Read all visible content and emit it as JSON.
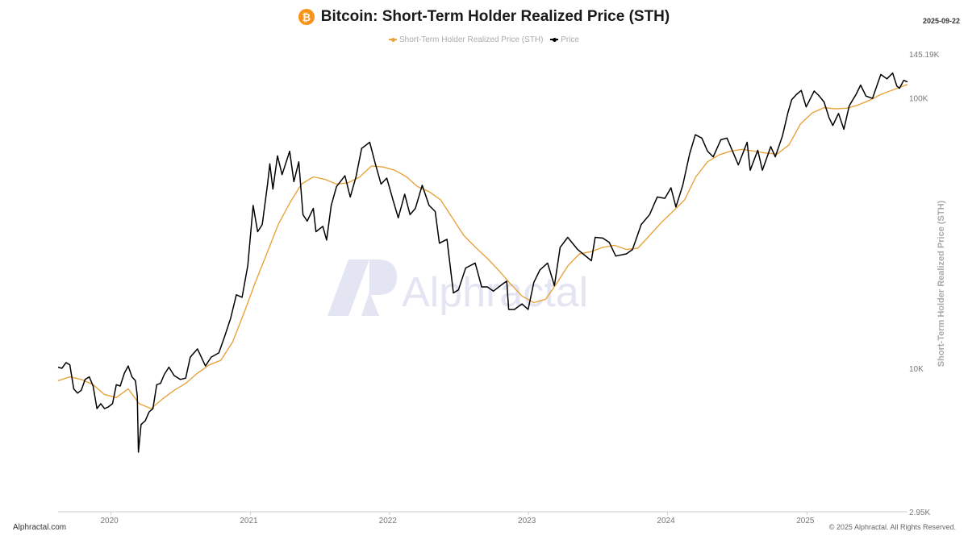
{
  "header": {
    "title": "Bitcoin: Short-Term Holder Realized Price (STH)",
    "date": "2025-09-22"
  },
  "footer": {
    "left": "Alphractal.com",
    "right": "© 2025 Alphractal. All Rights Reserved."
  },
  "watermark": "Alphractal",
  "colors": {
    "sth": "#e8a33d",
    "price": "#000000",
    "bitcoin": "#f7931a"
  },
  "chart_data": {
    "type": "line",
    "title": "Bitcoin: Short-Term Holder Realized Price (STH)",
    "ylabel": "Short-Term Holder Realized Price (STH)",
    "yscale": "log",
    "ylim": [
      2950,
      145190
    ],
    "y_ticks": [
      {
        "value": 2950,
        "label": "2.95K"
      },
      {
        "value": 10000,
        "label": "10K"
      },
      {
        "value": 100000,
        "label": "100K"
      },
      {
        "value": 145190,
        "label": "145.19K"
      }
    ],
    "xlim": [
      "2019-08-15",
      "2025-09-22"
    ],
    "x_ticks": [
      {
        "value": "2020-01-01",
        "label": "2020"
      },
      {
        "value": "2021-01-01",
        "label": "2021"
      },
      {
        "value": "2022-01-01",
        "label": "2022"
      },
      {
        "value": "2023-01-01",
        "label": "2023"
      },
      {
        "value": "2024-01-01",
        "label": "2024"
      },
      {
        "value": "2025-01-01",
        "label": "2025"
      }
    ],
    "legend": "top-center",
    "grid": false,
    "series": [
      {
        "name": "Short-Term Holder Realized Price (STH)",
        "color": "#e8a33d",
        "points": [
          [
            "2019-08-15",
            9000
          ],
          [
            "2019-09-15",
            9300
          ],
          [
            "2019-10-15",
            9100
          ],
          [
            "2019-11-15",
            8700
          ],
          [
            "2019-12-15",
            8000
          ],
          [
            "2020-01-15",
            7800
          ],
          [
            "2020-02-15",
            8400
          ],
          [
            "2020-03-15",
            7400
          ],
          [
            "2020-04-15",
            7100
          ],
          [
            "2020-05-15",
            7700
          ],
          [
            "2020-06-15",
            8300
          ],
          [
            "2020-07-15",
            8800
          ],
          [
            "2020-08-15",
            9600
          ],
          [
            "2020-09-15",
            10300
          ],
          [
            "2020-10-15",
            10700
          ],
          [
            "2020-11-15",
            12500
          ],
          [
            "2020-12-15",
            16000
          ],
          [
            "2021-01-15",
            21000
          ],
          [
            "2021-02-15",
            27000
          ],
          [
            "2021-03-15",
            34000
          ],
          [
            "2021-04-15",
            41000
          ],
          [
            "2021-05-15",
            48000
          ],
          [
            "2021-06-15",
            51000
          ],
          [
            "2021-07-15",
            50000
          ],
          [
            "2021-08-15",
            48000
          ],
          [
            "2021-09-15",
            48500
          ],
          [
            "2021-10-15",
            51000
          ],
          [
            "2021-11-15",
            56000
          ],
          [
            "2021-12-15",
            55500
          ],
          [
            "2022-01-15",
            54000
          ],
          [
            "2022-02-15",
            51000
          ],
          [
            "2022-03-15",
            47000
          ],
          [
            "2022-04-15",
            45000
          ],
          [
            "2022-05-15",
            42000
          ],
          [
            "2022-06-15",
            36000
          ],
          [
            "2022-07-15",
            31000
          ],
          [
            "2022-08-15",
            28000
          ],
          [
            "2022-09-15",
            25500
          ],
          [
            "2022-10-15",
            23000
          ],
          [
            "2022-11-15",
            20500
          ],
          [
            "2022-12-15",
            18500
          ],
          [
            "2023-01-15",
            17500
          ],
          [
            "2023-02-15",
            18000
          ],
          [
            "2023-03-15",
            20500
          ],
          [
            "2023-04-15",
            24000
          ],
          [
            "2023-05-15",
            26500
          ],
          [
            "2023-06-15",
            27000
          ],
          [
            "2023-07-15",
            28000
          ],
          [
            "2023-08-15",
            28500
          ],
          [
            "2023-09-15",
            27500
          ],
          [
            "2023-10-15",
            27800
          ],
          [
            "2023-11-15",
            31000
          ],
          [
            "2023-12-15",
            34500
          ],
          [
            "2024-01-15",
            38000
          ],
          [
            "2024-02-15",
            42000
          ],
          [
            "2024-03-15",
            51000
          ],
          [
            "2024-04-15",
            58000
          ],
          [
            "2024-05-15",
            61500
          ],
          [
            "2024-06-15",
            63500
          ],
          [
            "2024-07-15",
            64500
          ],
          [
            "2024-08-15",
            63500
          ],
          [
            "2024-09-15",
            62500
          ],
          [
            "2024-10-15",
            62000
          ],
          [
            "2024-11-15",
            67000
          ],
          [
            "2024-12-15",
            80000
          ],
          [
            "2025-01-15",
            88000
          ],
          [
            "2025-02-15",
            92000
          ],
          [
            "2025-03-15",
            91000
          ],
          [
            "2025-04-15",
            91500
          ],
          [
            "2025-05-15",
            94000
          ],
          [
            "2025-06-15",
            98000
          ],
          [
            "2025-07-15",
            103000
          ],
          [
            "2025-08-15",
            107000
          ],
          [
            "2025-09-22",
            112000
          ]
        ]
      },
      {
        "name": "Price",
        "color": "#000000",
        "points": [
          [
            "2019-08-15",
            10100
          ],
          [
            "2019-08-25",
            10000
          ],
          [
            "2019-09-05",
            10500
          ],
          [
            "2019-09-15",
            10300
          ],
          [
            "2019-09-25",
            8400
          ],
          [
            "2019-10-05",
            8100
          ],
          [
            "2019-10-15",
            8300
          ],
          [
            "2019-10-25",
            9100
          ],
          [
            "2019-11-05",
            9300
          ],
          [
            "2019-11-15",
            8600
          ],
          [
            "2019-11-25",
            7100
          ],
          [
            "2019-12-05",
            7400
          ],
          [
            "2019-12-15",
            7100
          ],
          [
            "2019-12-25",
            7200
          ],
          [
            "2020-01-05",
            7400
          ],
          [
            "2020-01-15",
            8700
          ],
          [
            "2020-01-25",
            8600
          ],
          [
            "2020-02-05",
            9600
          ],
          [
            "2020-02-15",
            10200
          ],
          [
            "2020-02-25",
            9300
          ],
          [
            "2020-03-05",
            9000
          ],
          [
            "2020-03-10",
            7900
          ],
          [
            "2020-03-13",
            4900
          ],
          [
            "2020-03-20",
            6200
          ],
          [
            "2020-03-31",
            6400
          ],
          [
            "2020-04-10",
            6900
          ],
          [
            "2020-04-20",
            7100
          ],
          [
            "2020-04-30",
            8700
          ],
          [
            "2020-05-10",
            8800
          ],
          [
            "2020-05-20",
            9500
          ],
          [
            "2020-06-01",
            10100
          ],
          [
            "2020-06-15",
            9400
          ],
          [
            "2020-07-01",
            9100
          ],
          [
            "2020-07-15",
            9200
          ],
          [
            "2020-07-27",
            11000
          ],
          [
            "2020-08-15",
            11800
          ],
          [
            "2020-09-05",
            10200
          ],
          [
            "2020-09-20",
            11000
          ],
          [
            "2020-10-10",
            11400
          ],
          [
            "2020-10-25",
            13100
          ],
          [
            "2020-11-10",
            15300
          ],
          [
            "2020-11-25",
            18700
          ],
          [
            "2020-12-10",
            18300
          ],
          [
            "2020-12-25",
            24000
          ],
          [
            "2021-01-08",
            40000
          ],
          [
            "2021-01-20",
            32000
          ],
          [
            "2021-02-01",
            34000
          ],
          [
            "2021-02-15",
            48000
          ],
          [
            "2021-02-21",
            57000
          ],
          [
            "2021-03-01",
            46000
          ],
          [
            "2021-03-13",
            61000
          ],
          [
            "2021-03-25",
            52000
          ],
          [
            "2021-04-14",
            63500
          ],
          [
            "2021-04-25",
            49000
          ],
          [
            "2021-05-08",
            58000
          ],
          [
            "2021-05-19",
            37000
          ],
          [
            "2021-05-30",
            35000
          ],
          [
            "2021-06-15",
            39000
          ],
          [
            "2021-06-22",
            32000
          ],
          [
            "2021-07-10",
            33500
          ],
          [
            "2021-07-20",
            29800
          ],
          [
            "2021-08-01",
            40000
          ],
          [
            "2021-08-15",
            47000
          ],
          [
            "2021-09-06",
            51500
          ],
          [
            "2021-09-20",
            43000
          ],
          [
            "2021-10-05",
            51000
          ],
          [
            "2021-10-20",
            65000
          ],
          [
            "2021-11-10",
            68500
          ],
          [
            "2021-11-25",
            57000
          ],
          [
            "2021-12-10",
            48000
          ],
          [
            "2021-12-25",
            50500
          ],
          [
            "2022-01-10",
            42000
          ],
          [
            "2022-01-24",
            36000
          ],
          [
            "2022-02-10",
            44000
          ],
          [
            "2022-02-24",
            37000
          ],
          [
            "2022-03-10",
            39000
          ],
          [
            "2022-03-28",
            47500
          ],
          [
            "2022-04-15",
            40000
          ],
          [
            "2022-05-01",
            38000
          ],
          [
            "2022-05-12",
            29000
          ],
          [
            "2022-06-01",
            30000
          ],
          [
            "2022-06-18",
            19000
          ],
          [
            "2022-07-01",
            19500
          ],
          [
            "2022-07-20",
            23500
          ],
          [
            "2022-08-14",
            24500
          ],
          [
            "2022-08-31",
            20000
          ],
          [
            "2022-09-15",
            20000
          ],
          [
            "2022-10-01",
            19300
          ],
          [
            "2022-10-25",
            20500
          ],
          [
            "2022-11-05",
            21000
          ],
          [
            "2022-11-10",
            16500
          ],
          [
            "2022-11-25",
            16500
          ],
          [
            "2022-12-15",
            17300
          ],
          [
            "2022-12-31",
            16500
          ],
          [
            "2023-01-15",
            20800
          ],
          [
            "2023-01-31",
            23100
          ],
          [
            "2023-02-20",
            24500
          ],
          [
            "2023-03-10",
            20200
          ],
          [
            "2023-03-25",
            28000
          ],
          [
            "2023-04-14",
            30500
          ],
          [
            "2023-05-10",
            27500
          ],
          [
            "2023-06-15",
            25000
          ],
          [
            "2023-06-25",
            30500
          ],
          [
            "2023-07-15",
            30300
          ],
          [
            "2023-08-01",
            29200
          ],
          [
            "2023-08-18",
            26000
          ],
          [
            "2023-09-15",
            26500
          ],
          [
            "2023-10-01",
            27500
          ],
          [
            "2023-10-24",
            34000
          ],
          [
            "2023-11-15",
            37000
          ],
          [
            "2023-12-05",
            43000
          ],
          [
            "2023-12-25",
            42500
          ],
          [
            "2024-01-10",
            46500
          ],
          [
            "2024-01-23",
            39500
          ],
          [
            "2024-02-10",
            47500
          ],
          [
            "2024-02-28",
            62000
          ],
          [
            "2024-03-14",
            73000
          ],
          [
            "2024-03-31",
            71000
          ],
          [
            "2024-04-15",
            63500
          ],
          [
            "2024-04-30",
            60500
          ],
          [
            "2024-05-20",
            70000
          ],
          [
            "2024-06-05",
            71000
          ],
          [
            "2024-06-25",
            61000
          ],
          [
            "2024-07-05",
            56500
          ],
          [
            "2024-07-28",
            68500
          ],
          [
            "2024-08-05",
            54000
          ],
          [
            "2024-08-25",
            64000
          ],
          [
            "2024-09-06",
            54000
          ],
          [
            "2024-09-28",
            66000
          ],
          [
            "2024-10-10",
            60500
          ],
          [
            "2024-10-29",
            72500
          ],
          [
            "2024-11-12",
            88000
          ],
          [
            "2024-11-22",
            98500
          ],
          [
            "2024-12-05",
            103000
          ],
          [
            "2024-12-17",
            106500
          ],
          [
            "2024-12-30",
            92500
          ],
          [
            "2025-01-20",
            106000
          ],
          [
            "2025-02-01",
            102000
          ],
          [
            "2025-02-15",
            96500
          ],
          [
            "2025-02-28",
            84500
          ],
          [
            "2025-03-10",
            79000
          ],
          [
            "2025-03-25",
            87500
          ],
          [
            "2025-04-08",
            76500
          ],
          [
            "2025-04-22",
            93500
          ],
          [
            "2025-05-10",
            103000
          ],
          [
            "2025-05-22",
            111500
          ],
          [
            "2025-06-05",
            101500
          ],
          [
            "2025-06-22",
            99500
          ],
          [
            "2025-07-14",
            122000
          ],
          [
            "2025-07-30",
            117500
          ],
          [
            "2025-08-14",
            123500
          ],
          [
            "2025-08-25",
            110500
          ],
          [
            "2025-09-01",
            108500
          ],
          [
            "2025-09-12",
            116000
          ],
          [
            "2025-09-22",
            114500
          ]
        ]
      }
    ]
  }
}
